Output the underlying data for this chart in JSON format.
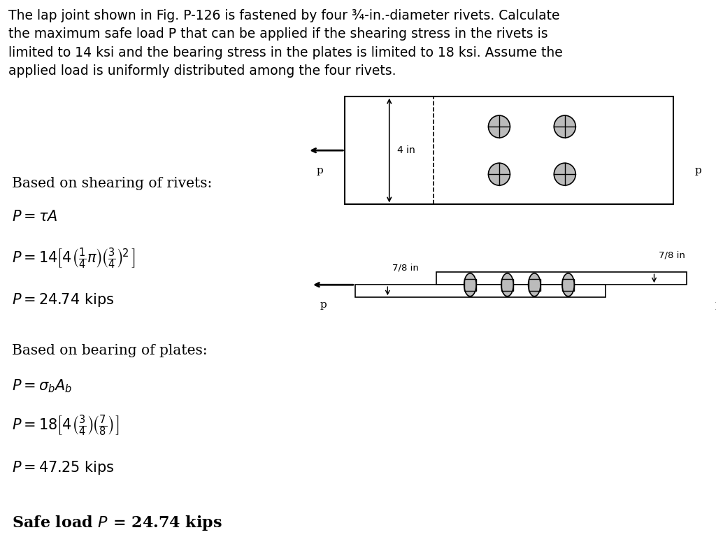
{
  "title_text": "The lap joint shown in Fig. P-126 is fastened by four ¾-in.-diameter rivets. Calculate\nthe maximum safe load P that can be applied if the shearing stress in the rivets is\nlimited to 14 ksi and the bearing stress in the plates is limited to 18 ksi. Assume the\napplied load is uniformly distributed among the four rivets.",
  "section1_header": "Based on shearing of rivets:",
  "section1_line1": "$P = \\tau A$",
  "section1_line2": "$P = 14\\left[4 \\left(\\frac{1}{4}\\pi\\right)\\left(\\frac{3}{4}\\right)^2 \\right]$",
  "section1_line3": "$P = 24.74 \\text{ kips}$",
  "section2_header": "Based on bearing of plates:",
  "section2_line1": "$P = \\sigma_b A_b$",
  "section2_line2": "$P = 18\\left[4 \\left(\\frac{3}{4}\\right)\\left(\\frac{7}{8}\\right) \\right]$",
  "section2_line3": "$P = 47.25 \\text{ kips}$",
  "section3_line1": "Safe load $P$ = 24.74 kips",
  "bg_color": "#ffffff",
  "text_color": "#000000"
}
